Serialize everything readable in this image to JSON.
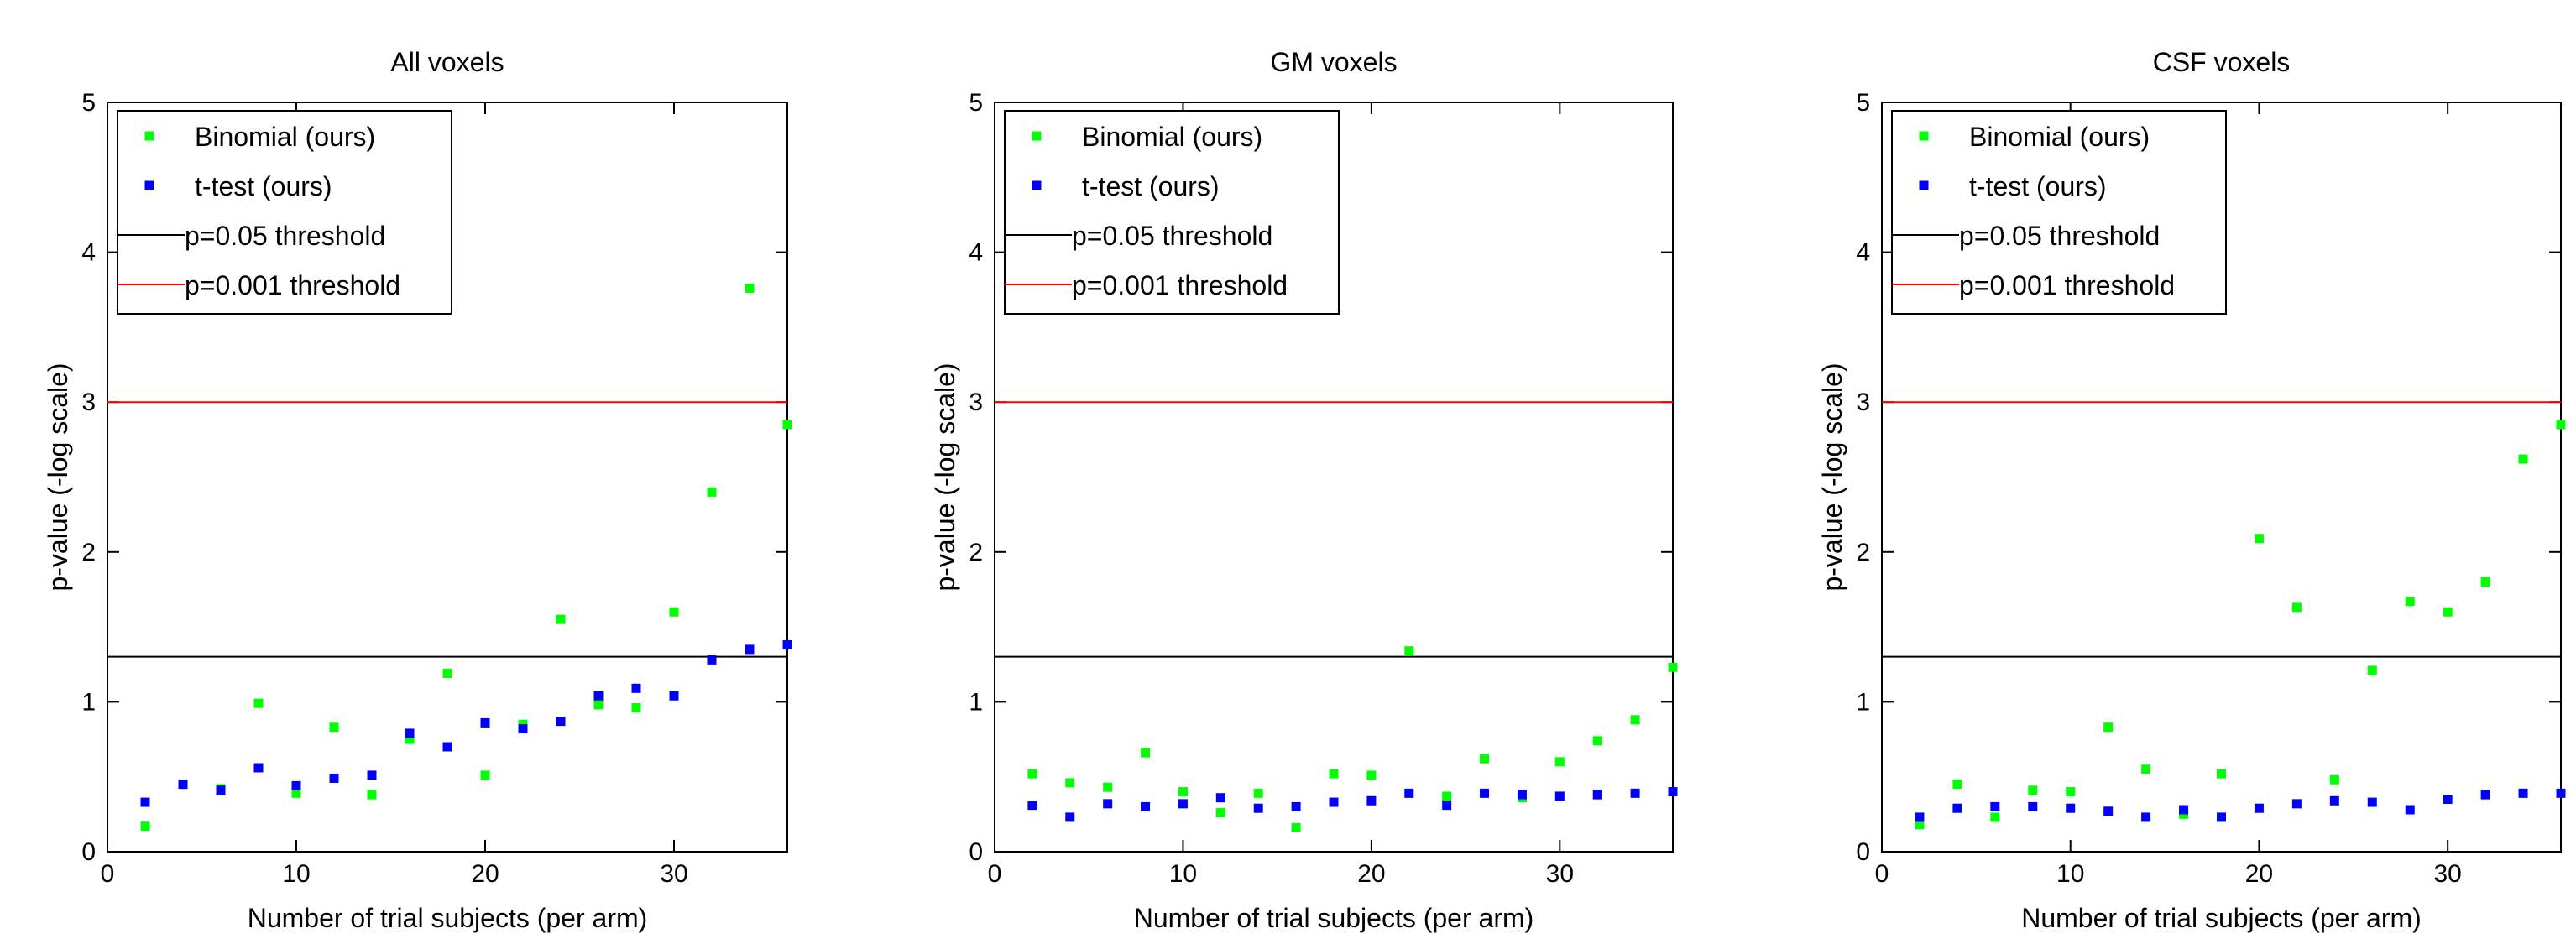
{
  "chart_data": [
    {
      "type": "scatter",
      "title": "All voxels",
      "xlabel": "Number of trial subjects (per arm)",
      "ylabel": "p-value (-log scale)",
      "xlim": [
        0,
        36
      ],
      "ylim": [
        0,
        5
      ],
      "xticks": [
        0,
        10,
        20,
        30
      ],
      "yticks": [
        0,
        1,
        2,
        3,
        4,
        5
      ],
      "grid": false,
      "legend_position": "top-left",
      "series": [
        {
          "name": "Binomial (ours)",
          "color": "#00ff00",
          "kind": "points",
          "x": [
            2,
            4,
            6,
            8,
            10,
            12,
            14,
            16,
            18,
            20,
            22,
            24,
            26,
            28,
            30,
            32,
            34,
            36
          ],
          "y": [
            0.17,
            0.45,
            0.42,
            0.99,
            0.39,
            0.83,
            0.38,
            0.75,
            1.19,
            0.51,
            0.85,
            1.55,
            0.98,
            0.96,
            1.6,
            2.4,
            3.76,
            2.85
          ]
        },
        {
          "name": "t-test (ours)",
          "color": "#0000ff",
          "kind": "points",
          "x": [
            2,
            4,
            6,
            8,
            10,
            12,
            14,
            16,
            18,
            20,
            22,
            24,
            26,
            28,
            30,
            32,
            34,
            36
          ],
          "y": [
            0.33,
            0.45,
            0.41,
            0.56,
            0.44,
            0.49,
            0.51,
            0.79,
            0.7,
            0.86,
            0.82,
            0.87,
            1.04,
            1.09,
            1.04,
            1.28,
            1.35,
            1.38
          ]
        },
        {
          "name": "p=0.05 threshold",
          "color": "#000000",
          "kind": "hline",
          "value": 1.301
        },
        {
          "name": "p=0.001 threshold",
          "color": "#ff0000",
          "kind": "hline",
          "value": 3.0
        }
      ]
    },
    {
      "type": "scatter",
      "title": "GM voxels",
      "xlabel": "Number of trial subjects (per arm)",
      "ylabel": "p-value (-log scale)",
      "xlim": [
        0,
        36
      ],
      "ylim": [
        0,
        5
      ],
      "xticks": [
        0,
        10,
        20,
        30
      ],
      "yticks": [
        0,
        1,
        2,
        3,
        4,
        5
      ],
      "grid": false,
      "legend_position": "top-left",
      "series": [
        {
          "name": "Binomial (ours)",
          "color": "#00ff00",
          "kind": "points",
          "x": [
            2,
            4,
            6,
            8,
            10,
            12,
            14,
            16,
            18,
            20,
            22,
            24,
            26,
            28,
            30,
            32,
            34,
            36
          ],
          "y": [
            0.52,
            0.46,
            0.43,
            0.66,
            0.4,
            0.26,
            0.39,
            0.16,
            0.52,
            0.51,
            1.34,
            0.37,
            0.62,
            0.36,
            0.6,
            0.74,
            0.88,
            1.23
          ]
        },
        {
          "name": "t-test (ours)",
          "color": "#0000ff",
          "kind": "points",
          "x": [
            2,
            4,
            6,
            8,
            10,
            12,
            14,
            16,
            18,
            20,
            22,
            24,
            26,
            28,
            30,
            32,
            34,
            36
          ],
          "y": [
            0.31,
            0.23,
            0.32,
            0.3,
            0.32,
            0.36,
            0.29,
            0.3,
            0.33,
            0.34,
            0.39,
            0.31,
            0.39,
            0.38,
            0.37,
            0.38,
            0.39,
            0.4
          ]
        },
        {
          "name": "p=0.05 threshold",
          "color": "#000000",
          "kind": "hline",
          "value": 1.301
        },
        {
          "name": "p=0.001 threshold",
          "color": "#ff0000",
          "kind": "hline",
          "value": 3.0
        }
      ]
    },
    {
      "type": "scatter",
      "title": "CSF voxels",
      "xlabel": "Number of trial subjects (per arm)",
      "ylabel": "p-value (-log scale)",
      "xlim": [
        0,
        36
      ],
      "ylim": [
        0,
        5
      ],
      "xticks": [
        0,
        10,
        20,
        30
      ],
      "yticks": [
        0,
        1,
        2,
        3,
        4,
        5
      ],
      "grid": false,
      "legend_position": "top-left",
      "series": [
        {
          "name": "Binomial (ours)",
          "color": "#00ff00",
          "kind": "points",
          "x": [
            2,
            4,
            6,
            8,
            10,
            12,
            14,
            16,
            18,
            20,
            22,
            24,
            26,
            28,
            30,
            32,
            34,
            36
          ],
          "y": [
            0.18,
            0.45,
            0.23,
            0.41,
            0.4,
            0.83,
            0.55,
            0.25,
            0.52,
            2.09,
            1.63,
            0.48,
            1.21,
            1.67,
            1.6,
            1.8,
            2.62,
            2.85
          ]
        },
        {
          "name": "t-test (ours)",
          "color": "#0000ff",
          "kind": "points",
          "x": [
            2,
            4,
            6,
            8,
            10,
            12,
            14,
            16,
            18,
            20,
            22,
            24,
            26,
            28,
            30,
            32,
            34,
            36
          ],
          "y": [
            0.23,
            0.29,
            0.3,
            0.3,
            0.29,
            0.27,
            0.23,
            0.28,
            0.23,
            0.29,
            0.32,
            0.34,
            0.33,
            0.28,
            0.35,
            0.38,
            0.39,
            0.39
          ]
        },
        {
          "name": "p=0.05 threshold",
          "color": "#000000",
          "kind": "hline",
          "value": 1.301
        },
        {
          "name": "p=0.001 threshold",
          "color": "#ff0000",
          "kind": "hline",
          "value": 3.0
        }
      ]
    }
  ]
}
